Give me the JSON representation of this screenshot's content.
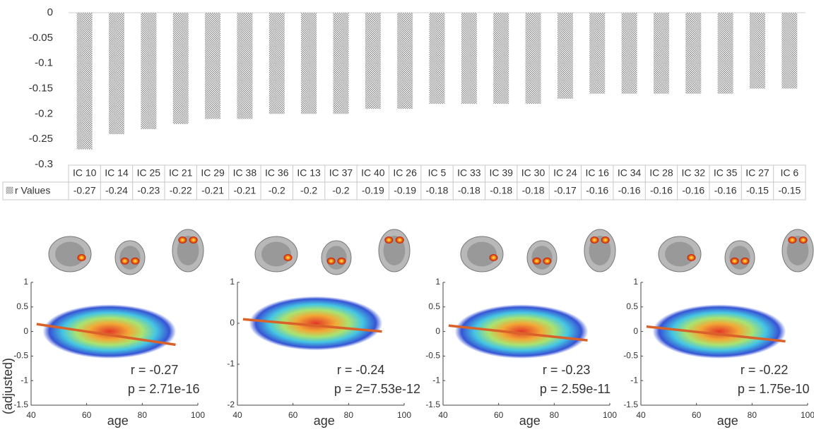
{
  "chart_data": [
    {
      "type": "bar",
      "categories": [
        "IC 10",
        "IC 14",
        "IC 25",
        "IC 21",
        "IC 29",
        "IC 38",
        "IC 36",
        "IC 13",
        "IC 37",
        "IC 40",
        "IC 26",
        "IC 5",
        "IC 33",
        "IC 39",
        "IC 30",
        "IC 24",
        "IC 16",
        "IC 34",
        "IC 28",
        "IC 32",
        "IC 35",
        "IC 27",
        "IC 6"
      ],
      "series": [
        {
          "name": "r Values",
          "color": "#8c8c8c",
          "values": [
            -0.27,
            -0.24,
            -0.23,
            -0.22,
            -0.21,
            -0.21,
            -0.2,
            -0.2,
            -0.2,
            -0.19,
            -0.19,
            -0.18,
            -0.18,
            -0.18,
            -0.18,
            -0.17,
            -0.16,
            -0.16,
            -0.16,
            -0.16,
            -0.16,
            -0.15,
            -0.15
          ]
        }
      ],
      "ylim": [
        -0.3,
        0
      ],
      "yticks": [
        0,
        -0.05,
        -0.1,
        -0.15,
        -0.2,
        -0.25,
        -0.3
      ],
      "data_table": true
    },
    {
      "type": "scatter",
      "ylabel": "(adjusted)",
      "xlabel": "age",
      "x": [
        42,
        92
      ],
      "values": [
        0.15,
        -0.27
      ],
      "color": "#d9622b",
      "xlim": [
        40,
        100
      ],
      "xticks": [
        40,
        60,
        80,
        100
      ],
      "ylim": [
        -1.5,
        1
      ],
      "yticks": [
        -1.5,
        -1,
        -0.5,
        0,
        0.5,
        1
      ],
      "annotations": [
        "r = -0.27",
        "p = 2.71e-16"
      ]
    },
    {
      "type": "scatter",
      "xlabel": "age",
      "x": [
        42,
        92
      ],
      "values": [
        0.1,
        -0.2
      ],
      "color": "#d9622b",
      "xlim": [
        40,
        100
      ],
      "xticks": [
        40,
        60,
        80,
        100
      ],
      "ylim": [
        -2,
        1
      ],
      "yticks": [
        -2,
        -1,
        0,
        1
      ],
      "annotations": [
        "r = -0.24",
        "p = 2=7.53e-12"
      ]
    },
    {
      "type": "scatter",
      "xlabel": "age",
      "x": [
        42,
        92
      ],
      "values": [
        0.12,
        -0.18
      ],
      "color": "#d9622b",
      "xlim": [
        40,
        100
      ],
      "xticks": [
        40,
        60,
        80,
        100
      ],
      "ylim": [
        -1.5,
        1
      ],
      "yticks": [
        -1.5,
        -1,
        -0.5,
        0,
        0.5,
        1
      ],
      "annotations": [
        "r = -0.23",
        "p = 2.59e-11"
      ]
    },
    {
      "type": "scatter",
      "xlabel": "age",
      "x": [
        42,
        92
      ],
      "values": [
        0.1,
        -0.2
      ],
      "color": "#d9622b",
      "xlim": [
        40,
        100
      ],
      "xticks": [
        40,
        60,
        80,
        100
      ],
      "ylim": [
        -1.5,
        1
      ],
      "yticks": [
        -1.5,
        -1,
        -0.5,
        0,
        0.5,
        1
      ],
      "annotations": [
        "r = -0.22",
        "p = 1.75e-10"
      ]
    }
  ]
}
